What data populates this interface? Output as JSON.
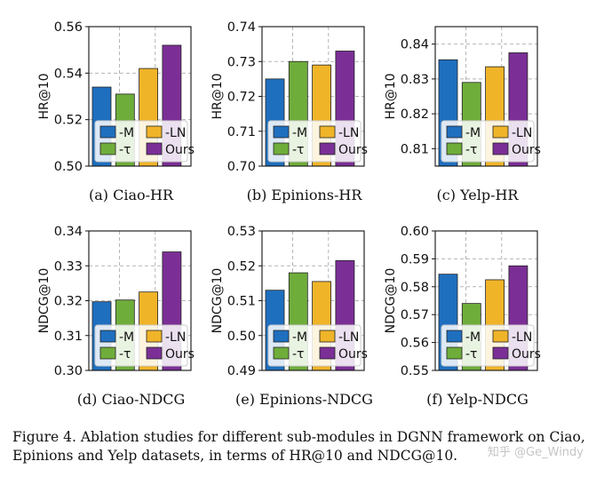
{
  "colors": {
    "M": "#1f6fbf",
    "tau": "#6fad3b",
    "LN": "#f0b429",
    "Ours": "#7b2f96"
  },
  "legend": {
    "M": "-M",
    "LN": "-LN",
    "tau": "-τ",
    "Ours": "Ours"
  },
  "chart_data": [
    {
      "type": "bar",
      "subcaption": "(a)  Ciao-HR",
      "ylabel": "HR@10",
      "categories": [
        "-M",
        "-τ",
        "-LN",
        "Ours"
      ],
      "values": [
        0.534,
        0.531,
        0.542,
        0.552
      ],
      "ylim": [
        0.5,
        0.56
      ],
      "yticks": [
        "0.50",
        "0.52",
        "0.54",
        "0.56"
      ]
    },
    {
      "type": "bar",
      "subcaption": "(b)  Epinions-HR",
      "ylabel": "HR@10",
      "categories": [
        "-M",
        "-τ",
        "-LN",
        "Ours"
      ],
      "values": [
        0.725,
        0.73,
        0.729,
        0.733
      ],
      "ylim": [
        0.7,
        0.74
      ],
      "yticks": [
        "0.70",
        "0.71",
        "0.72",
        "0.73",
        "0.74"
      ]
    },
    {
      "type": "bar",
      "subcaption": "(c)  Yelp-HR",
      "ylabel": "HR@10",
      "categories": [
        "-M",
        "-τ",
        "-LN",
        "Ours"
      ],
      "values": [
        0.8355,
        0.829,
        0.8335,
        0.8375
      ],
      "ylim": [
        0.805,
        0.845
      ],
      "yticks": [
        "0.81",
        "0.82",
        "0.83",
        "0.84"
      ]
    },
    {
      "type": "bar",
      "subcaption": "(d)  Ciao-NDCG",
      "ylabel": "NDCG@10",
      "categories": [
        "-M",
        "-τ",
        "-LN",
        "Ours"
      ],
      "values": [
        0.3197,
        0.3202,
        0.3225,
        0.334
      ],
      "ylim": [
        0.3,
        0.34
      ],
      "yticks": [
        "0.30",
        "0.31",
        "0.32",
        "0.33",
        "0.34"
      ]
    },
    {
      "type": "bar",
      "subcaption": "(e)  Epinions-NDCG",
      "ylabel": "NDCG@10",
      "categories": [
        "-M",
        "-τ",
        "-LN",
        "Ours"
      ],
      "values": [
        0.513,
        0.518,
        0.5155,
        0.5215
      ],
      "ylim": [
        0.49,
        0.53
      ],
      "yticks": [
        "0.49",
        "0.50",
        "0.51",
        "0.52",
        "0.53"
      ]
    },
    {
      "type": "bar",
      "subcaption": "(f)  Yelp-NDCG",
      "ylabel": "NDCG@10",
      "categories": [
        "-M",
        "-τ",
        "-LN",
        "Ours"
      ],
      "values": [
        0.5845,
        0.574,
        0.5825,
        0.5875
      ],
      "ylim": [
        0.55,
        0.6
      ],
      "yticks": [
        "0.55",
        "0.56",
        "0.57",
        "0.58",
        "0.59",
        "0.60"
      ]
    }
  ],
  "caption": "Figure 4.   Ablation studies for different sub-modules in DGNN framework on Ciao, Epinions and Yelp datasets, in terms of HR@10 and NDCG@10.",
  "watermark": "知乎 @Ge_Windy"
}
